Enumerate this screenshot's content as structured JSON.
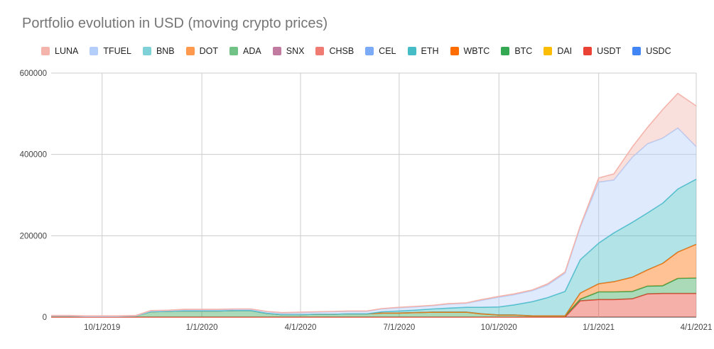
{
  "chart_data": {
    "type": "area",
    "stacked": true,
    "title": "Portfolio evolution in USD (moving crypto prices)",
    "xlabel": "",
    "ylabel": "",
    "ylim": [
      0,
      600000
    ],
    "yticks": [
      "600000",
      "400000",
      "200000",
      "0"
    ],
    "xticks": [
      "10/1/2019",
      "1/1/2020",
      "4/1/2020",
      "7/1/2020",
      "10/1/2020",
      "1/1/2021",
      "4/1/2021"
    ],
    "grid": true,
    "legend_position": "top",
    "x": [
      "2019-08-15",
      "2019-09-01",
      "2019-09-15",
      "2019-10-01",
      "2019-10-15",
      "2019-11-01",
      "2019-11-15",
      "2019-12-01",
      "2019-12-15",
      "2020-01-01",
      "2020-01-15",
      "2020-02-01",
      "2020-02-15",
      "2020-03-01",
      "2020-03-15",
      "2020-04-01",
      "2020-04-15",
      "2020-05-01",
      "2020-05-15",
      "2020-06-01",
      "2020-06-15",
      "2020-07-01",
      "2020-07-15",
      "2020-08-01",
      "2020-08-15",
      "2020-09-01",
      "2020-09-15",
      "2020-10-01",
      "2020-10-15",
      "2020-11-01",
      "2020-11-15",
      "2020-12-01",
      "2020-12-15",
      "2021-01-01",
      "2021-01-15",
      "2021-02-01",
      "2021-02-15",
      "2021-03-01",
      "2021-03-15",
      "2021-04-01"
    ],
    "series": [
      {
        "name": "USDC",
        "color": "#4285f4",
        "values": [
          0,
          0,
          0,
          0,
          0,
          0,
          0,
          0,
          0,
          0,
          0,
          0,
          0,
          0,
          0,
          0,
          0,
          0,
          0,
          0,
          0,
          0,
          0,
          0,
          0,
          0,
          0,
          0,
          0,
          0,
          0,
          0,
          0,
          0,
          0,
          0,
          0,
          0,
          0,
          0
        ]
      },
      {
        "name": "USDT",
        "color": "#ea4335",
        "values": [
          0,
          0,
          0,
          0,
          0,
          0,
          0,
          0,
          0,
          0,
          0,
          0,
          0,
          0,
          0,
          0,
          0,
          0,
          0,
          0,
          0,
          0,
          0,
          0,
          0,
          0,
          0,
          0,
          0,
          0,
          0,
          0,
          40000,
          43000,
          43000,
          45000,
          57000,
          58000,
          58000,
          58000
        ]
      },
      {
        "name": "DAI",
        "color": "#fbbc04",
        "values": [
          0,
          0,
          0,
          0,
          0,
          0,
          0,
          0,
          0,
          0,
          0,
          0,
          0,
          0,
          0,
          0,
          0,
          0,
          0,
          0,
          0,
          0,
          0,
          0,
          0,
          0,
          0,
          0,
          0,
          0,
          0,
          0,
          0,
          0,
          0,
          0,
          0,
          0,
          0,
          0
        ]
      },
      {
        "name": "BTC",
        "color": "#34a853",
        "values": [
          3000,
          3000,
          2000,
          2000,
          2000,
          3000,
          13000,
          14000,
          15000,
          15000,
          15000,
          16000,
          16000,
          9000,
          6000,
          6000,
          7000,
          7000,
          8000,
          8000,
          10000,
          10000,
          11000,
          12000,
          12000,
          12000,
          8000,
          5000,
          5000,
          3000,
          3000,
          3000,
          4000,
          19000,
          19000,
          18000,
          19000,
          19000,
          37000,
          38000
        ]
      },
      {
        "name": "WBTC",
        "color": "#ff6d01",
        "values": [
          0,
          0,
          0,
          0,
          0,
          0,
          0,
          0,
          0,
          0,
          0,
          0,
          0,
          0,
          0,
          0,
          0,
          0,
          0,
          0,
          0,
          0,
          0,
          0,
          0,
          0,
          0,
          0,
          0,
          0,
          0,
          0,
          15000,
          20000,
          25000,
          35000,
          40000,
          55000,
          65000,
          83000
        ]
      },
      {
        "name": "ETH",
        "color": "#46bdc6",
        "values": [
          0,
          0,
          0,
          0,
          0,
          0,
          0,
          0,
          0,
          0,
          0,
          0,
          0,
          0,
          0,
          0,
          0,
          0,
          0,
          0,
          3000,
          5000,
          6000,
          8000,
          10000,
          12000,
          16000,
          20000,
          25000,
          35000,
          45000,
          60000,
          82000,
          100000,
          120000,
          135000,
          140000,
          148000,
          155000,
          160000
        ]
      },
      {
        "name": "CEL",
        "color": "#7baaf7",
        "values": [
          0,
          0,
          0,
          0,
          0,
          0,
          0,
          0,
          0,
          0,
          0,
          0,
          0,
          0,
          0,
          0,
          0,
          0,
          0,
          0,
          0,
          0,
          0,
          0,
          0,
          0,
          0,
          0,
          0,
          0,
          0,
          0,
          0,
          0,
          0,
          0,
          0,
          0,
          0,
          0
        ]
      },
      {
        "name": "CHSB",
        "color": "#f07b72",
        "values": [
          0,
          0,
          0,
          0,
          0,
          0,
          0,
          0,
          0,
          0,
          0,
          0,
          0,
          0,
          0,
          0,
          0,
          0,
          0,
          0,
          0,
          0,
          0,
          0,
          0,
          0,
          0,
          0,
          0,
          0,
          0,
          0,
          0,
          0,
          0,
          0,
          0,
          0,
          0,
          0
        ]
      },
      {
        "name": "SNX",
        "color": "#c27ba0",
        "values": [
          0,
          0,
          0,
          0,
          0,
          0,
          0,
          0,
          0,
          0,
          0,
          0,
          0,
          0,
          0,
          0,
          0,
          0,
          0,
          0,
          0,
          0,
          0,
          0,
          0,
          0,
          0,
          0,
          0,
          0,
          0,
          0,
          0,
          0,
          0,
          0,
          0,
          0,
          0,
          0
        ]
      },
      {
        "name": "ADA",
        "color": "#71c287",
        "values": [
          0,
          0,
          0,
          0,
          0,
          0,
          0,
          0,
          0,
          0,
          0,
          0,
          0,
          0,
          0,
          0,
          0,
          0,
          0,
          0,
          0,
          0,
          0,
          0,
          0,
          0,
          0,
          0,
          0,
          0,
          0,
          0,
          0,
          0,
          0,
          0,
          0,
          0,
          0,
          0
        ]
      },
      {
        "name": "DOT",
        "color": "#ff994d",
        "values": [
          0,
          0,
          0,
          0,
          0,
          0,
          0,
          0,
          0,
          0,
          0,
          0,
          0,
          0,
          0,
          0,
          0,
          0,
          0,
          0,
          0,
          0,
          0,
          0,
          0,
          0,
          0,
          0,
          0,
          0,
          0,
          0,
          0,
          0,
          0,
          0,
          0,
          0,
          0,
          0
        ]
      },
      {
        "name": "BNB",
        "color": "#7ed1d7",
        "values": [
          0,
          0,
          0,
          0,
          0,
          0,
          0,
          0,
          0,
          0,
          0,
          0,
          0,
          0,
          0,
          0,
          0,
          0,
          0,
          0,
          0,
          0,
          0,
          0,
          0,
          0,
          0,
          0,
          0,
          0,
          0,
          0,
          0,
          0,
          0,
          0,
          0,
          0,
          0,
          0
        ]
      },
      {
        "name": "TFUEL",
        "color": "#b3cefb",
        "values": [
          0,
          0,
          0,
          0,
          0,
          0,
          2000,
          2000,
          3000,
          3000,
          3000,
          3000,
          3000,
          4000,
          4000,
          5000,
          5000,
          6000,
          6000,
          6000,
          7000,
          8000,
          8000,
          8000,
          10000,
          10000,
          17000,
          24000,
          25000,
          27000,
          31000,
          45000,
          80000,
          150000,
          130000,
          160000,
          170000,
          160000,
          150000,
          80000
        ]
      },
      {
        "name": "LUNA",
        "color": "#f4b4ac",
        "values": [
          1000,
          1000,
          1000,
          1000,
          1000,
          1000,
          1000,
          1000,
          1000,
          1000,
          1000,
          1000,
          1000,
          1000,
          1000,
          1000,
          1000,
          1000,
          1000,
          1000,
          1000,
          1000,
          1000,
          1000,
          1000,
          1000,
          2000,
          2000,
          2000,
          2000,
          3000,
          3000,
          3000,
          10000,
          15000,
          25000,
          40000,
          70000,
          85000,
          100000
        ]
      }
    ]
  }
}
